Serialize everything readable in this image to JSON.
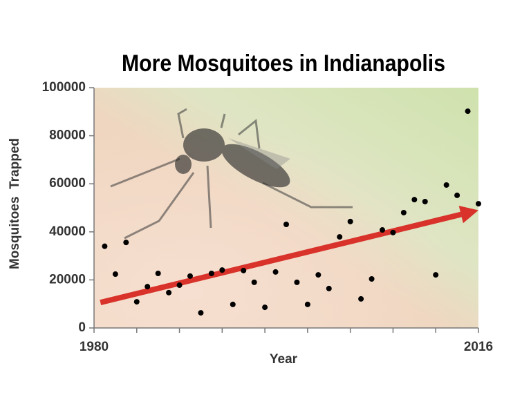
{
  "chart_data": {
    "type": "scatter",
    "title": "More Mosquitoes in Indianapolis",
    "xlabel": "Year",
    "ylabel": "Mosquitoes  Trapped",
    "x": [
      1981,
      1982,
      1983,
      1984,
      1985,
      1986,
      1987,
      1988,
      1989,
      1990,
      1991,
      1992,
      1993,
      1994,
      1995,
      1996,
      1997,
      1998,
      1999,
      2000,
      2001,
      2002,
      2003,
      2004,
      2005,
      2006,
      2007,
      2008,
      2009,
      2010,
      2011,
      2012,
      2013,
      2014,
      2015,
      2016
    ],
    "values": [
      34000,
      22400,
      35600,
      10900,
      17200,
      22700,
      14700,
      17800,
      21600,
      6300,
      22700,
      24100,
      9800,
      23900,
      19000,
      8600,
      23300,
      43100,
      19000,
      9800,
      22100,
      16400,
      37900,
      44300,
      12100,
      20400,
      40800,
      39700,
      48000,
      53400,
      52600,
      22100,
      59500,
      55200,
      90200,
      51700
    ],
    "color": "#000000",
    "xlim": [
      1980,
      2016
    ],
    "xticks": [
      1980,
      2016
    ],
    "xminor_ticks": [
      1984,
      1988,
      1992,
      1996,
      2000,
      2004,
      2008,
      2012
    ],
    "ylim": [
      0,
      100000
    ],
    "yticks": [
      0,
      20000,
      40000,
      60000,
      80000,
      100000
    ],
    "trend": {
      "x": [
        1980.6,
        2016
      ],
      "values": [
        10600,
        49000
      ],
      "color": "#d8322a"
    }
  }
}
